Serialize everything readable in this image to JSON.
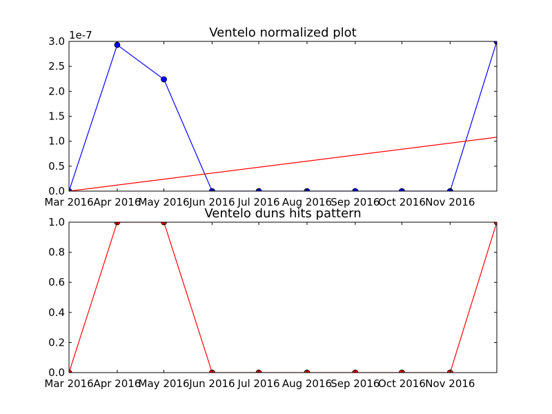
{
  "chart_data": [
    {
      "type": "line",
      "title": "Ventelo normalized plot",
      "xlabel": "",
      "ylabel": "",
      "y_offset_label": "1e-7",
      "x_tick_labels": [
        "Mar 2016",
        "Apr 2016",
        "May 2016",
        "Jun 2016",
        "Jul 2016",
        "Aug 2016",
        "Sep 2016",
        "Oct 2016",
        "Nov 2016"
      ],
      "y_tick_labels": [
        "0.0",
        "0.5",
        "1.0",
        "1.5",
        "2.0",
        "2.5",
        "3.0"
      ],
      "ylim": [
        0,
        3e-07
      ],
      "xlim": [
        "2016-03-01",
        "2016-12-01"
      ],
      "grid": false,
      "series": [
        {
          "color": "#0000ff",
          "marker": "circle",
          "points": [
            {
              "x": "2016-03-01",
              "y": 0
            },
            {
              "x": "2016-04-01",
              "y": 2.93e-07
            },
            {
              "x": "2016-05-01",
              "y": 2.24e-07
            },
            {
              "x": "2016-06-01",
              "y": 0
            },
            {
              "x": "2016-07-01",
              "y": 0
            },
            {
              "x": "2016-08-01",
              "y": 0
            },
            {
              "x": "2016-09-01",
              "y": 0
            },
            {
              "x": "2016-10-01",
              "y": 0
            },
            {
              "x": "2016-11-01",
              "y": 0
            },
            {
              "x": "2016-12-01",
              "y": 3e-07
            }
          ]
        },
        {
          "color": "#ff0000",
          "marker": "none",
          "points": [
            {
              "x": "2016-03-01",
              "y": 0
            },
            {
              "x": "2016-12-01",
              "y": 1.08e-07
            }
          ]
        }
      ]
    },
    {
      "type": "line",
      "title": "Ventelo duns hits pattern",
      "xlabel": "",
      "ylabel": "",
      "x_tick_labels": [
        "Mar 2016",
        "Apr 2016",
        "May 2016",
        "Jun 2016",
        "Jul 2016",
        "Aug 2016",
        "Sep 2016",
        "Oct 2016",
        "Nov 2016"
      ],
      "y_tick_labels": [
        "0.0",
        "0.2",
        "0.4",
        "0.6",
        "0.8",
        "1.0"
      ],
      "ylim": [
        0,
        1.0
      ],
      "xlim": [
        "2016-03-01",
        "2016-12-01"
      ],
      "grid": false,
      "series": [
        {
          "color": "#ff0000",
          "marker": "circle",
          "points": [
            {
              "x": "2016-03-01",
              "y": 0
            },
            {
              "x": "2016-04-01",
              "y": 1
            },
            {
              "x": "2016-05-01",
              "y": 1
            },
            {
              "x": "2016-06-01",
              "y": 0
            },
            {
              "x": "2016-07-01",
              "y": 0
            },
            {
              "x": "2016-08-01",
              "y": 0
            },
            {
              "x": "2016-09-01",
              "y": 0
            },
            {
              "x": "2016-10-01",
              "y": 0
            },
            {
              "x": "2016-11-01",
              "y": 0
            },
            {
              "x": "2016-12-01",
              "y": 1
            }
          ]
        }
      ]
    }
  ]
}
